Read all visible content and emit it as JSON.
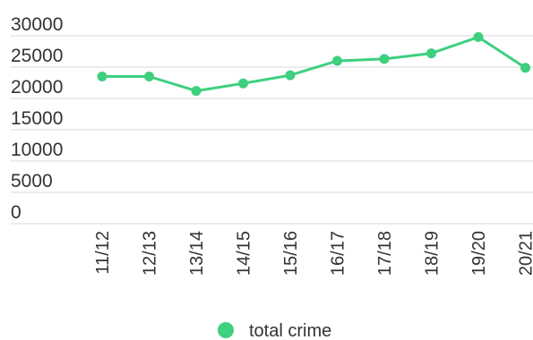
{
  "chart_data": {
    "type": "line",
    "categories": [
      "11/12",
      "12/13",
      "13/14",
      "14/15",
      "15/16",
      "16/17",
      "17/18",
      "18/19",
      "19/20",
      "20/21"
    ],
    "series": [
      {
        "name": "total crime",
        "color": "#3ecf7f",
        "values": [
          23500,
          23500,
          21200,
          22400,
          23700,
          26000,
          26300,
          27200,
          29800,
          24900
        ]
      }
    ],
    "ylim": [
      0,
      30000
    ],
    "yticks": [
      "0",
      "5000",
      "10000",
      "15000",
      "20000",
      "25000",
      "30000"
    ],
    "grid": true,
    "legend_position": "bottom-center"
  }
}
